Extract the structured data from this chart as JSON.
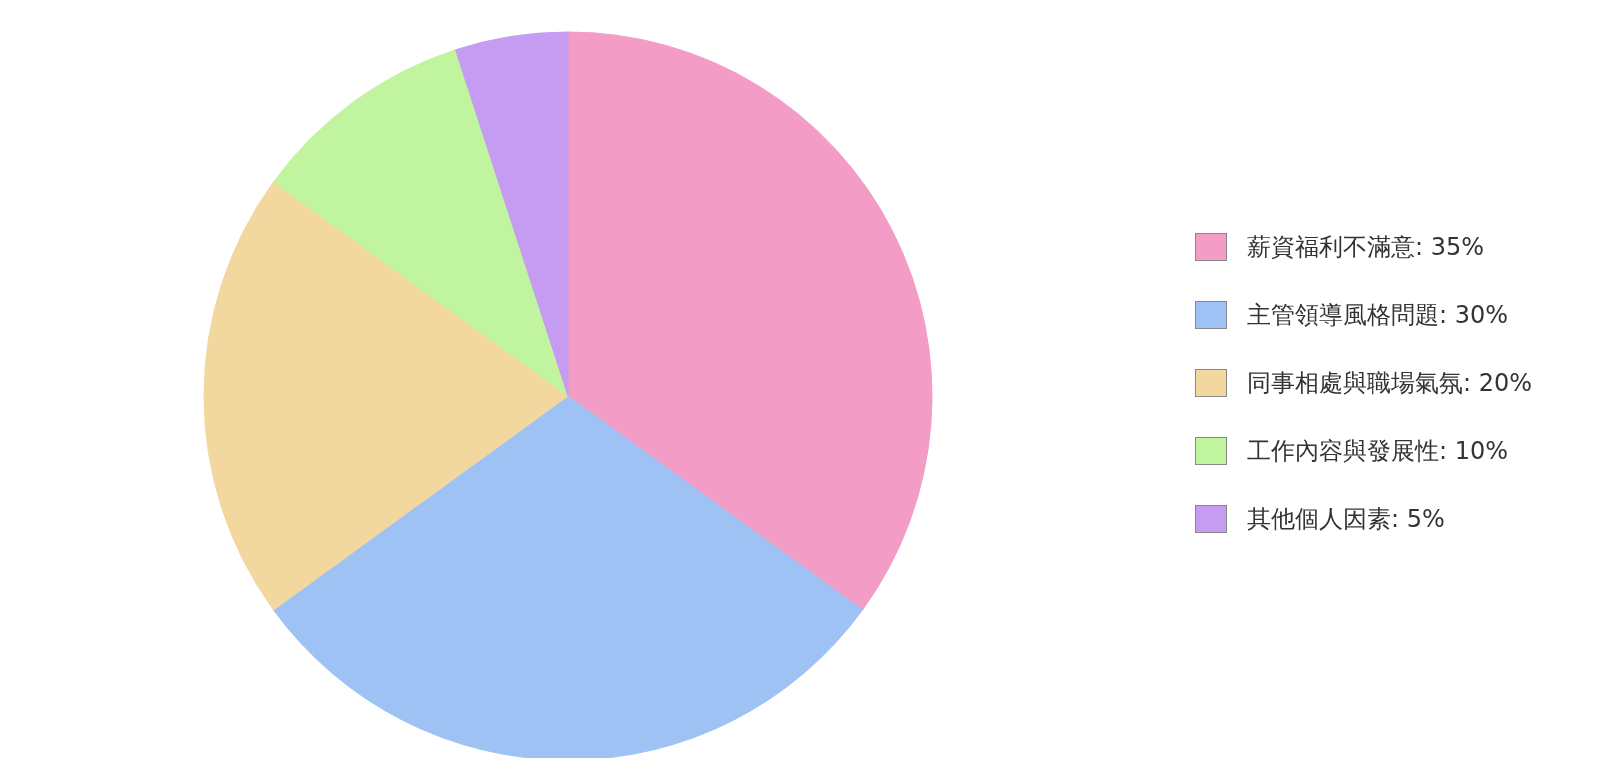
{
  "chart_data": {
    "type": "pie",
    "categories": [
      "薪資福利不滿意: 35%",
      "主管領導風格問題: 30%",
      "同事相處與職場氣氛: 20%",
      "工作內容與發展性: 10%",
      "其他個人因素: 5%"
    ],
    "values": [
      35,
      30,
      20,
      10,
      5
    ],
    "colors": [
      "#f29cc6",
      "#9fc2f4",
      "#f2d89e",
      "#c1f49f",
      "#c59cf2"
    ],
    "legend": "right"
  }
}
